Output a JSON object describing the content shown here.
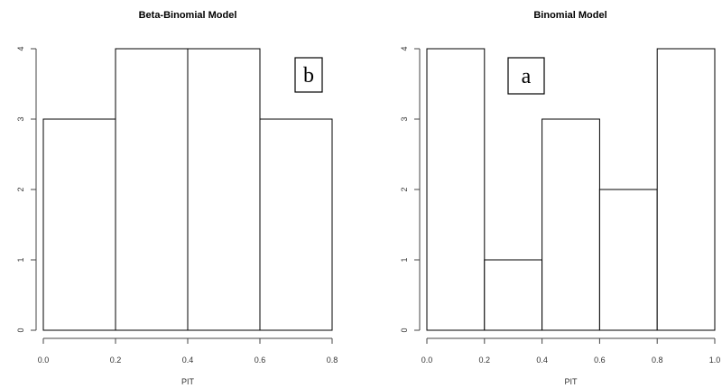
{
  "chart_data": [
    {
      "type": "bar",
      "title": "Beta-Binomial Model",
      "xlabel": "PIT",
      "ylabel": "",
      "panel_tag": "b",
      "bin_edges": [
        0.0,
        0.2,
        0.4,
        0.6,
        0.8
      ],
      "values": [
        3,
        4,
        4,
        3
      ],
      "xlim": [
        0.0,
        0.8
      ],
      "ylim": [
        0,
        4
      ],
      "x_ticks": [
        "0.0",
        "0.2",
        "0.4",
        "0.6",
        "0.8"
      ],
      "y_ticks": [
        "0",
        "1",
        "2",
        "3",
        "4"
      ],
      "grid": false
    },
    {
      "type": "bar",
      "title": "Binomial Model",
      "xlabel": "PIT",
      "ylabel": "",
      "panel_tag": "a",
      "bin_edges": [
        0.0,
        0.2,
        0.4,
        0.6,
        0.8,
        1.0
      ],
      "values": [
        4,
        1,
        3,
        2,
        4
      ],
      "xlim": [
        0.0,
        1.0
      ],
      "ylim": [
        0,
        4
      ],
      "x_ticks": [
        "0.0",
        "0.2",
        "0.4",
        "0.6",
        "0.8",
        "1.0"
      ],
      "y_ticks": [
        "0",
        "1",
        "2",
        "3",
        "4"
      ],
      "grid": false
    }
  ]
}
